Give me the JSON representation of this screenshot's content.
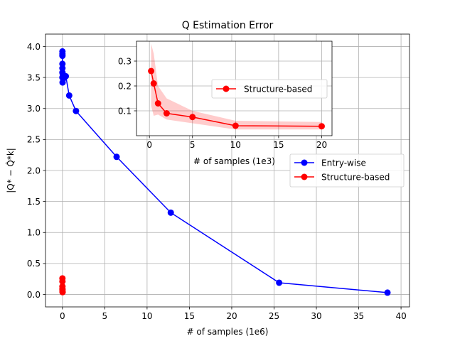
{
  "chart_data": {
    "type": "line",
    "title": "Q Estimation Error",
    "xlabel": "# of samples (1e6)",
    "ylabel": "|Q* − Q̂*k|",
    "xlim": [
      -2,
      41
    ],
    "ylim": [
      -0.2,
      4.2
    ],
    "xticks": [
      0,
      5,
      10,
      15,
      20,
      25,
      30,
      35,
      40
    ],
    "yticks": [
      0.0,
      0.5,
      1.0,
      1.5,
      2.0,
      2.5,
      3.0,
      3.5,
      4.0
    ],
    "xtick_labels": [
      "0",
      "5",
      "10",
      "15",
      "20",
      "25",
      "30",
      "35",
      "40"
    ],
    "ytick_labels": [
      "0.0",
      "0.5",
      "1.0",
      "1.5",
      "2.0",
      "2.5",
      "3.0",
      "3.5",
      "4.0"
    ],
    "grid": true,
    "legend": {
      "placement": "center-right",
      "entries": [
        "Entry-wise",
        "Structure-based"
      ]
    },
    "series": [
      {
        "name": "Entry-wise",
        "color": "#0000ff",
        "marker": "o",
        "x": [
          0.0,
          0.0,
          0.0,
          0.0,
          0.0,
          0.0,
          0.0,
          0.02,
          0.05,
          0.1,
          0.2,
          0.4,
          0.8,
          1.6,
          6.4,
          12.8,
          25.6,
          38.4
        ],
        "y": [
          3.92,
          3.88,
          3.85,
          3.72,
          3.65,
          3.58,
          3.5,
          3.42,
          3.55,
          3.48,
          3.52,
          3.52,
          3.21,
          2.96,
          2.22,
          1.32,
          0.19,
          0.03
        ]
      },
      {
        "name": "Structure-based",
        "color": "#ff0000",
        "marker": "o",
        "x": [
          0.0002,
          0.0005,
          0.001,
          0.002,
          0.005,
          0.01,
          0.02
        ],
        "y": [
          0.26,
          0.21,
          0.13,
          0.09,
          0.075,
          0.04,
          0.038
        ]
      }
    ],
    "inset": {
      "type": "line",
      "xlabel": "# of samples (1e3)",
      "xlim": [
        -1.5,
        21.2
      ],
      "ylim": [
        0.0,
        0.38
      ],
      "xticks": [
        0,
        5,
        10,
        15,
        20
      ],
      "yticks": [
        0.1,
        0.2,
        0.3
      ],
      "xtick_labels": [
        "0",
        "5",
        "10",
        "15",
        "20"
      ],
      "ytick_labels": [
        "0.1",
        "0.2",
        "0.3"
      ],
      "grid": true,
      "legend": {
        "placement": "center-right",
        "entries": [
          "Structure-based"
        ]
      },
      "series": [
        {
          "name": "Structure-based",
          "color": "#ff0000",
          "marker": "o",
          "x": [
            0.2,
            0.5,
            1.0,
            2.0,
            5.0,
            10.0,
            20.0
          ],
          "y": [
            0.26,
            0.21,
            0.13,
            0.09,
            0.075,
            0.04,
            0.038
          ],
          "y_upper": [
            0.37,
            0.33,
            0.2,
            0.15,
            0.1,
            0.06,
            0.055
          ],
          "y_lower": [
            0.12,
            0.08,
            0.085,
            0.065,
            0.05,
            0.025,
            0.025
          ]
        }
      ]
    }
  }
}
